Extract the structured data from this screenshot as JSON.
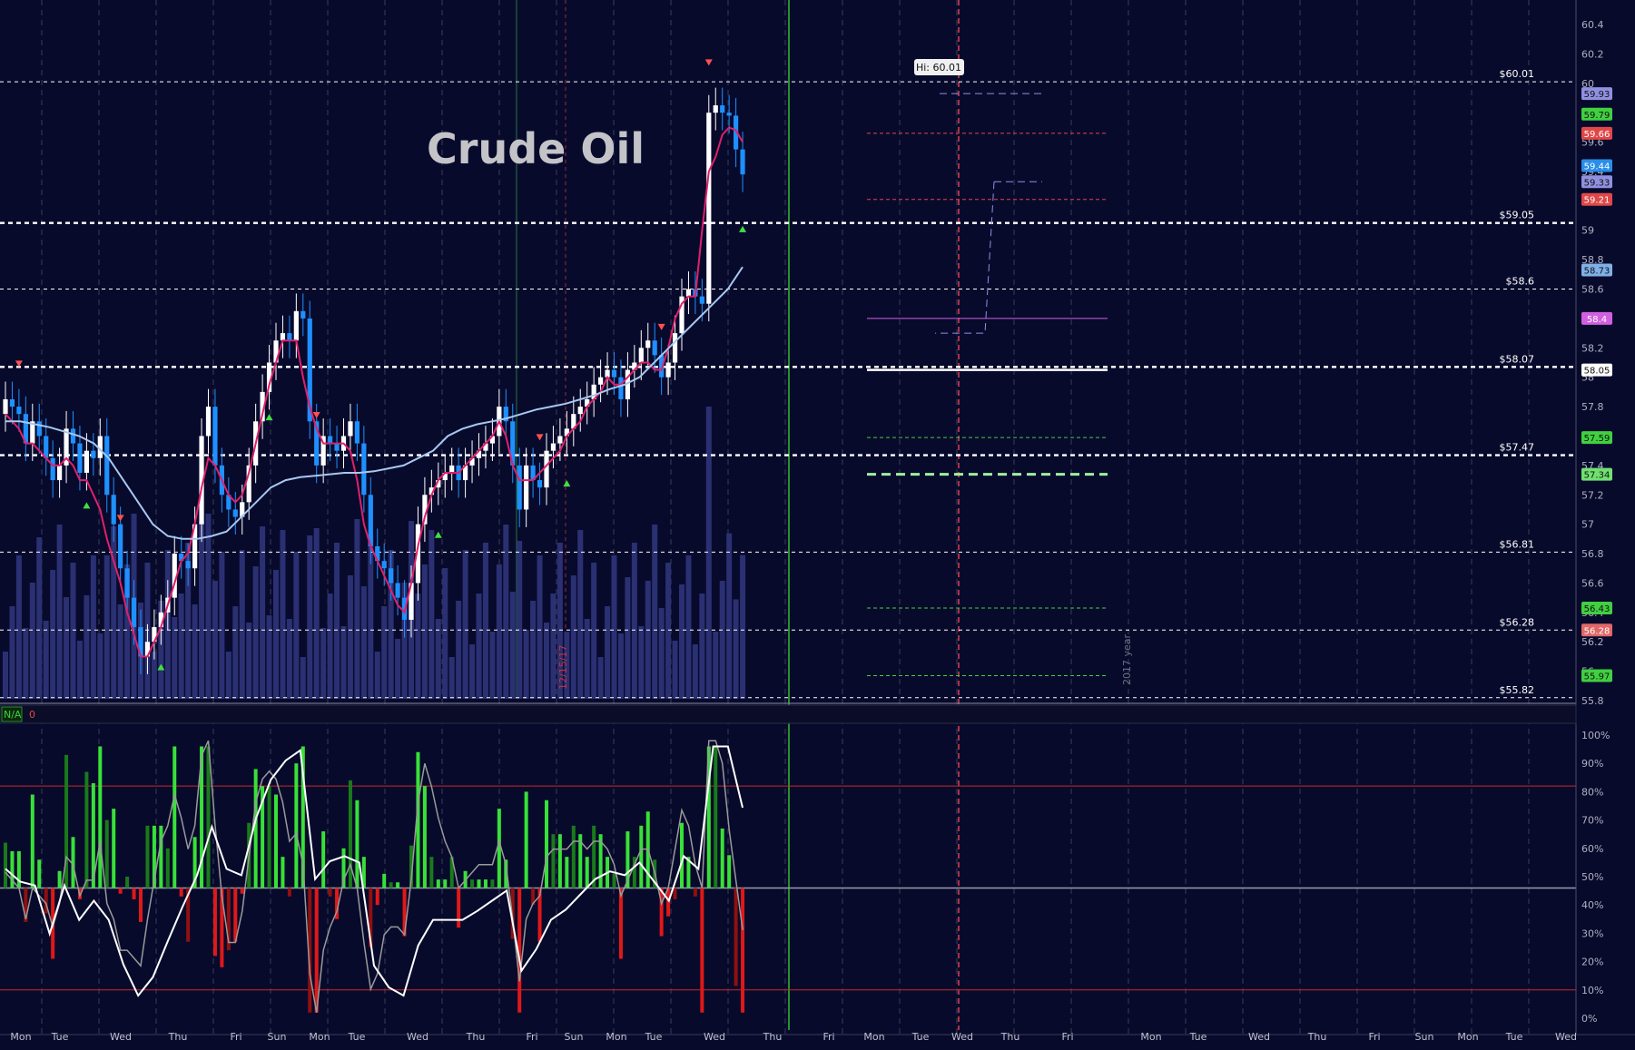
{
  "title": "Crude Oil",
  "hi_label": "Hi: 60.01",
  "date_marker": "12/15/17",
  "year_marker": "2017 year",
  "status_na": "N/A",
  "status_zero": "0",
  "price_axis": [
    "60.4",
    "60.2",
    "60",
    "59.8",
    "59.6",
    "59.4",
    "59.2",
    "59",
    "58.8",
    "58.6",
    "58.4",
    "58.2",
    "58",
    "57.8",
    "57.6",
    "57.4",
    "57.2",
    "57",
    "56.8",
    "56.6",
    "56.4",
    "56.2",
    "56",
    "55.8"
  ],
  "osc_axis": [
    "100%",
    "90%",
    "80%",
    "70%",
    "60%",
    "50%",
    "40%",
    "30%",
    "20%",
    "10%",
    "0%"
  ],
  "day_labels": [
    "Mon",
    "Tue",
    "Wed",
    "Thu",
    "Fri",
    "Sun",
    "Mon",
    "Tue",
    "Wed",
    "Thu",
    "Fri",
    "Sun",
    "Mon",
    "Tue",
    "Wed",
    "Thu",
    "Fri",
    "Mon",
    "Tue",
    "Wed",
    "Thu",
    "Fri",
    "Mon",
    "Tue",
    "Wed",
    "Thu",
    "Fri",
    "Sun",
    "Mon",
    "Tue",
    "Wed"
  ],
  "levels": [
    {
      "value": "$60.01",
      "price": 60.01,
      "style": "white-dash"
    },
    {
      "value": "$59.05",
      "price": 59.05,
      "style": "white-bold-dash"
    },
    {
      "value": "$58.6",
      "price": 58.6,
      "style": "white-dash"
    },
    {
      "value": "$58.07",
      "price": 58.07,
      "style": "white-bold-dash"
    },
    {
      "value": "$57.47",
      "price": 57.47,
      "style": "white-bold-dash"
    },
    {
      "value": "$56.81",
      "price": 56.81,
      "style": "white-dash"
    },
    {
      "value": "$56.28",
      "price": 56.28,
      "style": "white-dash"
    },
    {
      "value": "$55.82",
      "price": 55.82,
      "style": "white-dash"
    }
  ],
  "badges": [
    {
      "value": "59.93",
      "price": 59.93,
      "color": "#9090e0"
    },
    {
      "value": "59.79",
      "price": 59.79,
      "color": "#40d040"
    },
    {
      "value": "59.66",
      "price": 59.66,
      "color": "#e04848"
    },
    {
      "value": "59.44",
      "price": 59.44,
      "color": "#2a8ee8"
    },
    {
      "value": "59.33",
      "price": 59.33,
      "color": "#9090e0"
    },
    {
      "value": "59.21",
      "price": 59.21,
      "color": "#e04848"
    },
    {
      "value": "58.73",
      "price": 58.73,
      "color": "#7fb0e8"
    },
    {
      "value": "58.4",
      "price": 58.4,
      "color": "#d060e0"
    },
    {
      "value": "58.05",
      "price": 58.05,
      "color": "#ffffff"
    },
    {
      "value": "57.59",
      "price": 57.59,
      "color": "#40d040"
    },
    {
      "value": "57.34",
      "price": 57.34,
      "color": "#70e070"
    },
    {
      "value": "56.43",
      "price": 56.43,
      "color": "#40d040"
    },
    {
      "value": "56.28",
      "price": 56.28,
      "color": "#e06868"
    },
    {
      "value": "55.97",
      "price": 55.97,
      "color": "#40d040"
    }
  ],
  "colors": {
    "background": "#080a2c",
    "up_candle": "#ffffff",
    "down_candle": "#1e90ff",
    "fast_ma": "#e0206a",
    "slow_ma": "#a8c8f0",
    "volume": "#2a3072",
    "osc_up": "#38e038",
    "osc_up_dark": "#1a7a1a",
    "osc_down": "#e01818",
    "osc_down_dark": "#901010"
  },
  "chart_data": {
    "type": "candlestick",
    "title": "Crude Oil",
    "ylim": [
      55.8,
      60.5
    ],
    "closes": [
      57.85,
      57.8,
      57.75,
      57.55,
      57.7,
      57.6,
      57.45,
      57.3,
      57.4,
      57.65,
      57.55,
      57.35,
      57.5,
      57.45,
      57.6,
      57.2,
      57.0,
      56.7,
      56.5,
      56.3,
      56.1,
      56.2,
      56.3,
      56.4,
      56.5,
      56.8,
      56.75,
      56.7,
      57.0,
      57.6,
      57.8,
      57.4,
      57.2,
      57.1,
      57.05,
      57.15,
      57.4,
      57.7,
      57.9,
      58.1,
      58.25,
      58.3,
      58.25,
      58.45,
      58.4,
      57.7,
      57.4,
      57.6,
      57.55,
      57.5,
      57.6,
      57.7,
      57.55,
      57.2,
      56.85,
      56.75,
      56.7,
      56.6,
      56.5,
      56.35,
      56.6,
      57.0,
      57.2,
      57.25,
      57.3,
      57.35,
      57.4,
      57.3,
      57.4,
      57.45,
      57.5,
      57.55,
      57.6,
      57.8,
      57.7,
      57.4,
      57.1,
      57.4,
      57.3,
      57.25,
      57.5,
      57.55,
      57.6,
      57.65,
      57.75,
      57.8,
      57.85,
      57.95,
      58.0,
      58.05,
      58.0,
      57.85,
      58.05,
      58.1,
      58.2,
      58.25,
      58.15,
      58.0,
      58.1,
      58.3,
      58.55,
      58.6,
      58.55,
      58.5,
      59.8,
      59.85,
      59.8,
      59.78,
      59.55,
      59.38
    ],
    "fast_ma": [
      57.75,
      57.7,
      57.65,
      57.55,
      57.55,
      57.5,
      57.45,
      57.4,
      57.4,
      57.45,
      57.4,
      57.3,
      57.3,
      57.2,
      57.1,
      56.9,
      56.75,
      56.6,
      56.4,
      56.25,
      56.1,
      56.1,
      56.2,
      56.3,
      56.45,
      56.6,
      56.75,
      56.8,
      57.0,
      57.25,
      57.45,
      57.4,
      57.3,
      57.2,
      57.15,
      57.2,
      57.35,
      57.55,
      57.75,
      57.95,
      58.1,
      58.25,
      58.25,
      58.25,
      58.0,
      57.8,
      57.65,
      57.55,
      57.55,
      57.55,
      57.55,
      57.5,
      57.3,
      57.0,
      56.85,
      56.75,
      56.65,
      56.55,
      56.45,
      56.4,
      56.6,
      56.85,
      57.05,
      57.2,
      57.3,
      57.35,
      57.35,
      57.35,
      57.4,
      57.45,
      57.5,
      57.55,
      57.6,
      57.7,
      57.6,
      57.4,
      57.3,
      57.3,
      57.3,
      57.35,
      57.4,
      57.45,
      57.5,
      57.6,
      57.65,
      57.7,
      57.8,
      57.85,
      57.9,
      58.0,
      57.95,
      57.95,
      58.0,
      58.05,
      58.1,
      58.1,
      58.05,
      58.05,
      58.2,
      58.4,
      58.5,
      58.55,
      58.55,
      59.0,
      59.4,
      59.5,
      59.65,
      59.7,
      59.68,
      59.6
    ],
    "slow_ma": [
      57.7,
      57.7,
      57.68,
      57.66,
      57.63,
      57.6,
      57.55,
      57.45,
      57.3,
      57.15,
      57.0,
      56.92,
      56.9,
      56.9,
      56.92,
      56.95,
      57.05,
      57.15,
      57.25,
      57.3,
      57.32,
      57.33,
      57.34,
      57.35,
      57.35,
      57.36,
      57.38,
      57.4,
      57.45,
      57.5,
      57.6,
      57.65,
      57.68,
      57.7,
      57.72,
      57.75,
      57.78,
      57.8,
      57.82,
      57.85,
      57.88,
      57.92,
      57.95,
      58.0,
      58.1,
      58.2,
      58.3,
      58.4,
      58.5,
      58.6,
      58.75
    ]
  }
}
